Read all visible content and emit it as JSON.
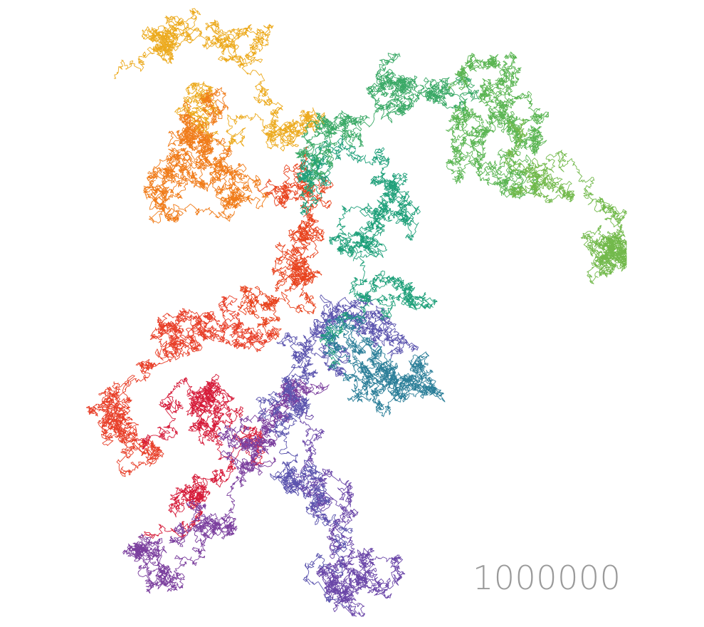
{
  "visualization": {
    "step_count": "1000000",
    "background_color": "#ffffff",
    "counter_color": "#9a9a9a",
    "path_color_sequence": [
      "#ecaa1e",
      "#f07c1a",
      "#e8441f",
      "#e8402a",
      "#d61c3a",
      "#7b3f9e",
      "#6a46a8",
      "#5b54ae",
      "#2c7f99",
      "#1fa07a",
      "#3aa966",
      "#5ab552",
      "#72b94b"
    ]
  }
}
